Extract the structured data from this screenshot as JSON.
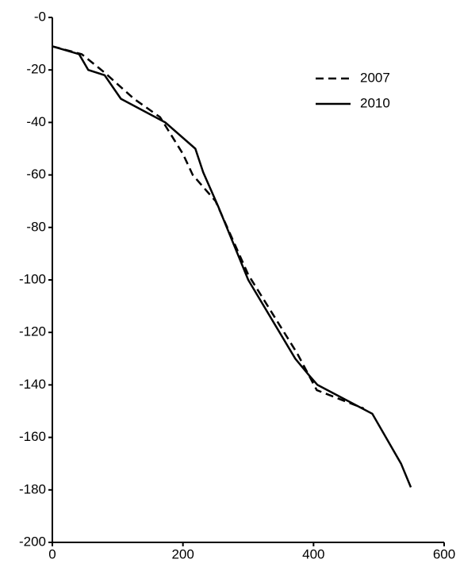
{
  "chart_data": {
    "type": "line",
    "xlim": [
      0,
      600
    ],
    "xticks": [
      0,
      200,
      400,
      600
    ],
    "ylim": [
      -200,
      0
    ],
    "yticks": [
      {
        "value": 0,
        "label": "-0"
      },
      -20,
      -40,
      -60,
      -80,
      -100,
      -120,
      -140,
      -160,
      -180,
      -200
    ],
    "legend": "upper right",
    "series": [
      {
        "name": "2007",
        "color": "#000000",
        "dash": true,
        "x": [
          0,
          45,
          80,
          125,
          165,
          200,
          215,
          250,
          300,
          350,
          375,
          405,
          477
        ],
        "values": [
          -11,
          -14,
          -21,
          -31,
          -38,
          -52,
          -60,
          -70,
          -98,
          -118,
          -128,
          -142,
          -149
        ]
      },
      {
        "name": "2010",
        "color": "#000000",
        "dash": false,
        "x": [
          0,
          41,
          55,
          80,
          105,
          173,
          219,
          231,
          254,
          300,
          372,
          392,
          406,
          490,
          534,
          549
        ],
        "values": [
          -11,
          -14,
          -20,
          -22,
          -31,
          -40,
          -50,
          -59,
          -72,
          -100,
          -130,
          -136,
          -140,
          -151,
          -170,
          -179
        ]
      }
    ]
  }
}
